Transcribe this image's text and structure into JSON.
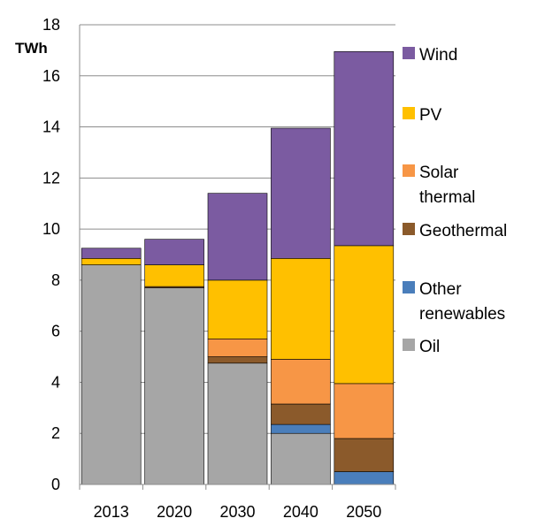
{
  "chart_data": {
    "type": "bar",
    "stacked": true,
    "ylabel": "TWh",
    "ylim": [
      0,
      18
    ],
    "yticks": [
      0,
      2,
      4,
      6,
      8,
      10,
      12,
      14,
      16,
      18
    ],
    "grid": true,
    "legend_position": "right",
    "categories": [
      "2013",
      "2020",
      "2030",
      "2040",
      "2050"
    ],
    "series": [
      {
        "name": "Oil",
        "color": "#a6a6a6",
        "values": [
          8.6,
          7.7,
          4.75,
          2.0,
          0.0
        ]
      },
      {
        "name": "Other renewables",
        "color": "#4a7ebb",
        "values": [
          0.0,
          0.0,
          0.0,
          0.35,
          0.5
        ]
      },
      {
        "name": "Geothermal",
        "color": "#8b5a2b",
        "values": [
          0.0,
          0.05,
          0.25,
          0.8,
          1.3
        ]
      },
      {
        "name": "Solar thermal",
        "color": "#f79646",
        "values": [
          0.0,
          0.0,
          0.7,
          1.75,
          2.15
        ]
      },
      {
        "name": "PV",
        "color": "#ffc000",
        "values": [
          0.25,
          0.85,
          2.3,
          3.95,
          5.4
        ]
      },
      {
        "name": "Wind",
        "color": "#7b5ba1",
        "values": [
          0.4,
          1.0,
          3.4,
          5.1,
          7.6
        ]
      }
    ],
    "legend": [
      {
        "label_lines": [
          "Wind"
        ],
        "color": "#7b5ba1"
      },
      {
        "label_lines": [
          "PV"
        ],
        "color": "#ffc000"
      },
      {
        "label_lines": [
          "Solar",
          "thermal"
        ],
        "color": "#f79646"
      },
      {
        "label_lines": [
          "Geothermal"
        ],
        "color": "#8b5a2b"
      },
      {
        "label_lines": [
          "Other",
          "renewables"
        ],
        "color": "#4a7ebb"
      },
      {
        "label_lines": [
          "Oil"
        ],
        "color": "#a6a6a6"
      }
    ]
  }
}
